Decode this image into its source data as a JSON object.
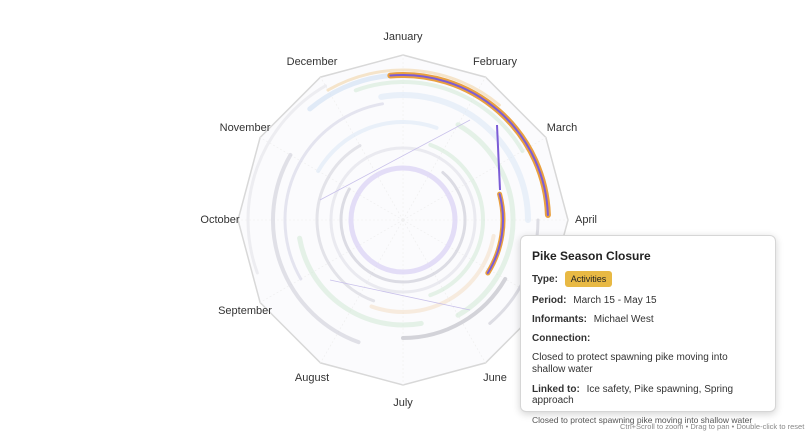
{
  "months": [
    "January",
    "February",
    "March",
    "April",
    "June",
    "July",
    "August",
    "September",
    "October",
    "November",
    "December"
  ],
  "tooltip": {
    "title": "Pike Season Closure",
    "type_label": "Type:",
    "type": "Activities",
    "period_label": "Period:",
    "period": "March 15 - May 15",
    "informants_label": "Informants:",
    "informants": "Michael West",
    "connection_label": "Connection:",
    "connection": "Closed to protect spawning pike moving into shallow water",
    "linked_label": "Linked to:",
    "linked": "Ice safety, Pike spawning, Spring approach",
    "footer": "Closed to protect spawning pike moving into shallow water"
  },
  "hint": "Ctrl+Scroll to zoom • Drag to pan • Double-click to reset"
}
